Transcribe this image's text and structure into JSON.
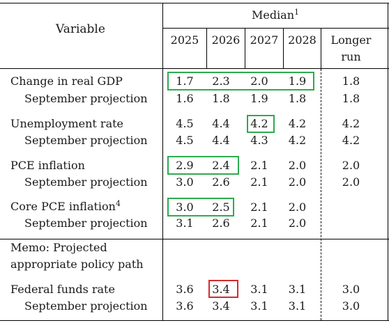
{
  "header": {
    "variable_label": "Variable",
    "median_label": "Median",
    "median_footnote": "1",
    "years": [
      "2025",
      "2026",
      "2027",
      "2028"
    ],
    "longer_run_line1": "Longer",
    "longer_run_line2": "run"
  },
  "rows": [
    {
      "label": "Change in real GDP",
      "footnote": "",
      "values": [
        "1.7",
        "2.3",
        "2.0",
        "1.9",
        "1.8"
      ],
      "sep_label": "September projection",
      "sep_values": [
        "1.6",
        "1.8",
        "1.9",
        "1.8",
        "1.8"
      ]
    },
    {
      "label": "Unemployment rate",
      "footnote": "",
      "values": [
        "4.5",
        "4.4",
        "4.2",
        "4.2",
        "4.2"
      ],
      "sep_label": "September projection",
      "sep_values": [
        "4.5",
        "4.4",
        "4.3",
        "4.2",
        "4.2"
      ]
    },
    {
      "label": "PCE inflation",
      "footnote": "",
      "values": [
        "2.9",
        "2.4",
        "2.1",
        "2.0",
        "2.0"
      ],
      "sep_label": "September projection",
      "sep_values": [
        "3.0",
        "2.6",
        "2.1",
        "2.0",
        "2.0"
      ]
    },
    {
      "label": "Core PCE inflation",
      "footnote": "4",
      "values": [
        "3.0",
        "2.5",
        "2.1",
        "2.0",
        ""
      ],
      "sep_label": "September projection",
      "sep_values": [
        "3.1",
        "2.6",
        "2.1",
        "2.0",
        ""
      ]
    }
  ],
  "memo": {
    "line1": "Memo: Projected",
    "line2": "appropriate policy path"
  },
  "fed_funds": {
    "label": "Federal funds rate",
    "values": [
      "3.6",
      "3.4",
      "3.1",
      "3.1",
      "3.0"
    ],
    "sep_label": "September projection",
    "sep_values": [
      "3.6",
      "3.4",
      "3.1",
      "3.1",
      "3.0"
    ]
  },
  "highlight_colors": {
    "green": "#2eaa4f",
    "red": "#d62a2a"
  }
}
